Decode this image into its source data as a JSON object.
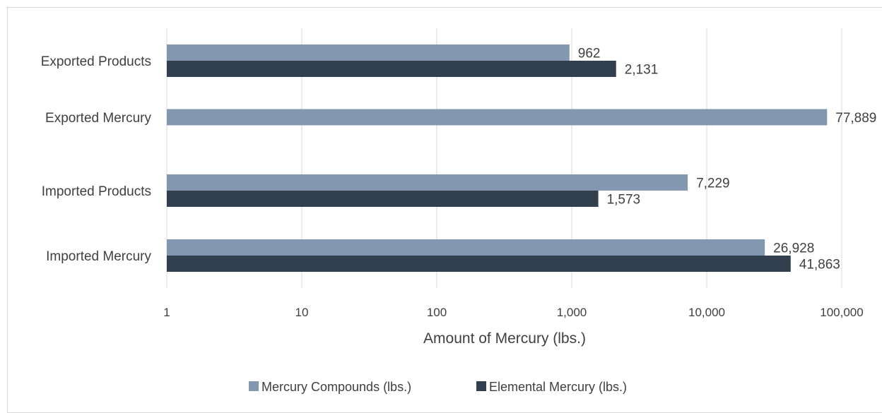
{
  "chart_data": {
    "type": "bar",
    "orientation": "horizontal",
    "categories": [
      "Imported Mercury",
      "Imported Products",
      "Exported Mercury",
      "Exported Products"
    ],
    "series": [
      {
        "name": "Mercury Compounds (lbs.)",
        "color": "#8497b0",
        "values": [
          26928,
          7229,
          77889,
          962
        ]
      },
      {
        "name": "Elemental Mercury (lbs.)",
        "color": "#323f4f",
        "values": [
          41863,
          1573,
          null,
          2131
        ]
      }
    ],
    "data_labels": [
      [
        "26,928",
        "7,229",
        "77,889",
        "962"
      ],
      [
        "41,863",
        "1,573",
        "",
        "2,131"
      ]
    ],
    "xlabel": "Amount of Mercury (lbs.)",
    "xscale": "log",
    "xlim": [
      1,
      100000
    ],
    "xticks": [
      1,
      10,
      100,
      1000,
      10000,
      100000
    ],
    "xtick_labels": [
      "1",
      "10",
      "100",
      "1,000",
      "10,000",
      "100,000"
    ],
    "grid": "vertical",
    "legend_position": "bottom"
  }
}
